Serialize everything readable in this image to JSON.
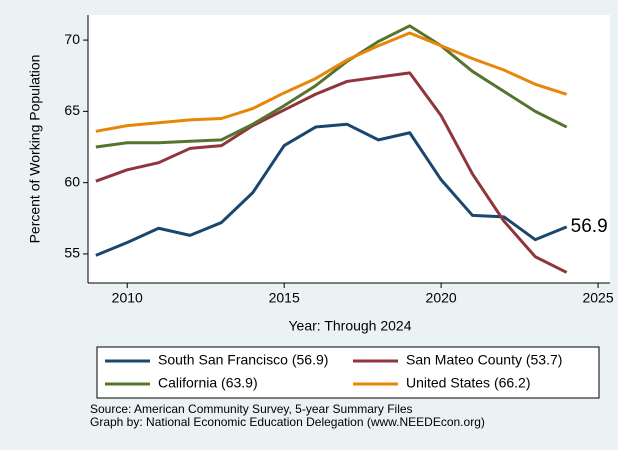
{
  "chart_data": {
    "type": "line",
    "x": [
      2009,
      2010,
      2011,
      2012,
      2013,
      2014,
      2015,
      2016,
      2017,
      2018,
      2019,
      2020,
      2021,
      2022,
      2023,
      2024
    ],
    "series": [
      {
        "name": "South San Francisco (56.9)",
        "color": "#1a476f",
        "values": [
          54.9,
          55.8,
          56.8,
          56.3,
          57.2,
          59.3,
          62.6,
          63.9,
          64.1,
          63.0,
          63.5,
          60.2,
          57.7,
          57.6,
          56.0,
          56.9
        ]
      },
      {
        "name": "San Mateo County (53.7)",
        "color": "#90353b",
        "values": [
          60.1,
          60.9,
          61.4,
          62.4,
          62.6,
          64.0,
          65.1,
          66.2,
          67.1,
          67.4,
          67.7,
          64.7,
          60.6,
          57.3,
          54.8,
          53.7
        ]
      },
      {
        "name": "California (63.9)",
        "color": "#55752f",
        "values": [
          62.5,
          62.8,
          62.8,
          62.9,
          63.0,
          64.1,
          65.4,
          66.8,
          68.5,
          69.9,
          71.0,
          69.6,
          67.8,
          66.4,
          65.0,
          63.9
        ]
      },
      {
        "name": "United States (66.2)",
        "color": "#e8860a",
        "values": [
          63.6,
          64.0,
          64.2,
          64.4,
          64.5,
          65.2,
          66.3,
          67.3,
          68.6,
          69.6,
          70.5,
          69.6,
          68.7,
          67.9,
          66.9,
          66.2
        ]
      }
    ],
    "annotation": "56.9",
    "xlabel": "Year: Through 2024",
    "ylabel": "Percent of Working Population",
    "xlim": [
      2008.75,
      2025.38
    ],
    "xticks": [
      2010,
      2015,
      2020,
      2025
    ],
    "ylim": [
      52.96,
      71.76
    ],
    "yticks": [
      55,
      60,
      65,
      70
    ],
    "source": [
      "Source: American Community Survey, 5-year Summary Files",
      "Graph by: National Economic Education Delegation (www.NEEDEcon.org)"
    ]
  }
}
